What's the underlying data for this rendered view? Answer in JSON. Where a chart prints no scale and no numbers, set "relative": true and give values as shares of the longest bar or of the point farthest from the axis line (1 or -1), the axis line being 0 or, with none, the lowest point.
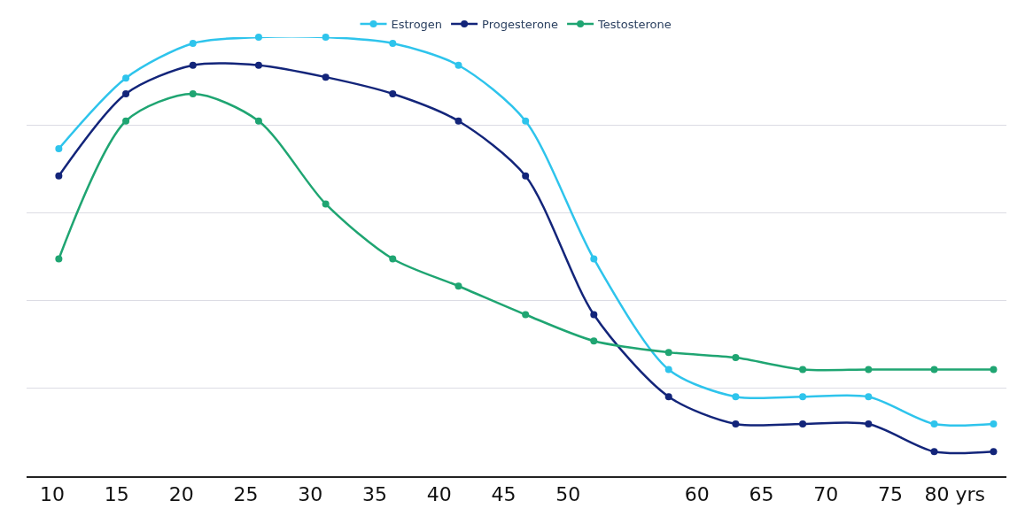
{
  "chart_data": {
    "type": "line",
    "relative": true,
    "grid": "y",
    "legend": "top",
    "marker": "circle",
    "line_style": "solid",
    "x": [
      10.5,
      15.7,
      20.9,
      26,
      31.2,
      36.4,
      41.5,
      46.7,
      52,
      57.8,
      63,
      68.2,
      73.3,
      78.4,
      83
    ],
    "xlim": [
      8,
      84
    ],
    "xticks": [
      10,
      15,
      20,
      25,
      30,
      35,
      40,
      45,
      50,
      60,
      65,
      70,
      75,
      {
        "value": 80,
        "label": "80 yrs"
      }
    ],
    "series": [
      {
        "name": "Estrogen",
        "color": "#2ec4ec",
        "values": [
          0.746,
          0.907,
          0.986,
          1,
          1,
          0.986,
          0.936,
          0.809,
          0.495,
          0.243,
          0.181,
          0.181,
          0.181,
          0.119,
          0.119
        ]
      },
      {
        "name": "Progesterone",
        "color": "#13257a",
        "values": [
          0.684,
          0.871,
          0.936,
          0.936,
          0.909,
          0.871,
          0.809,
          0.684,
          0.368,
          0.181,
          0.119,
          0.119,
          0.119,
          0.056,
          0.056
        ]
      },
      {
        "name": "Testosterone",
        "color": "#1fa572",
        "values": [
          0.495,
          0.809,
          0.871,
          0.809,
          0.62,
          0.495,
          0.433,
          0.368,
          0.308,
          0.282,
          0.27,
          0.243,
          0.243,
          0.243,
          0.243
        ]
      }
    ]
  }
}
